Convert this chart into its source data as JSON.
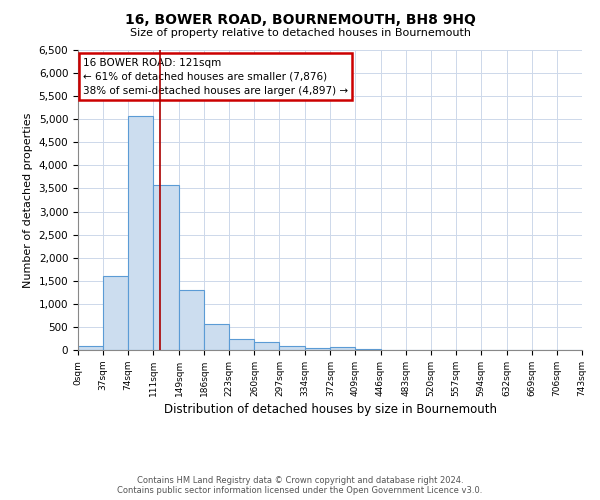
{
  "title": "16, BOWER ROAD, BOURNEMOUTH, BH8 9HQ",
  "subtitle": "Size of property relative to detached houses in Bournemouth",
  "xlabel": "Distribution of detached houses by size in Bournemouth",
  "ylabel": "Number of detached properties",
  "bar_color": "#ccddef",
  "bar_edge_color": "#5b9bd5",
  "property_line_color": "#aa0000",
  "annotation_text": "16 BOWER ROAD: 121sqm\n← 61% of detached houses are smaller (7,876)\n38% of semi-detached houses are larger (4,897) →",
  "annotation_box_color": "#cc0000",
  "footnote1": "Contains HM Land Registry data © Crown copyright and database right 2024.",
  "footnote2": "Contains public sector information licensed under the Open Government Licence v3.0.",
  "bins": [
    0,
    37,
    74,
    111,
    149,
    186,
    223,
    260,
    297,
    334,
    372,
    409,
    446,
    483,
    520,
    557,
    594,
    632,
    669,
    706,
    743
  ],
  "counts": [
    80,
    1600,
    5080,
    3580,
    1300,
    570,
    230,
    180,
    80,
    40,
    60,
    20,
    0,
    0,
    0,
    0,
    0,
    0,
    0,
    0
  ],
  "property_size": 121,
  "ylim": [
    0,
    6500
  ],
  "yticks": [
    0,
    500,
    1000,
    1500,
    2000,
    2500,
    3000,
    3500,
    4000,
    4500,
    5000,
    5500,
    6000,
    6500
  ],
  "background_color": "#ffffff",
  "grid_color": "#cdd8ea"
}
